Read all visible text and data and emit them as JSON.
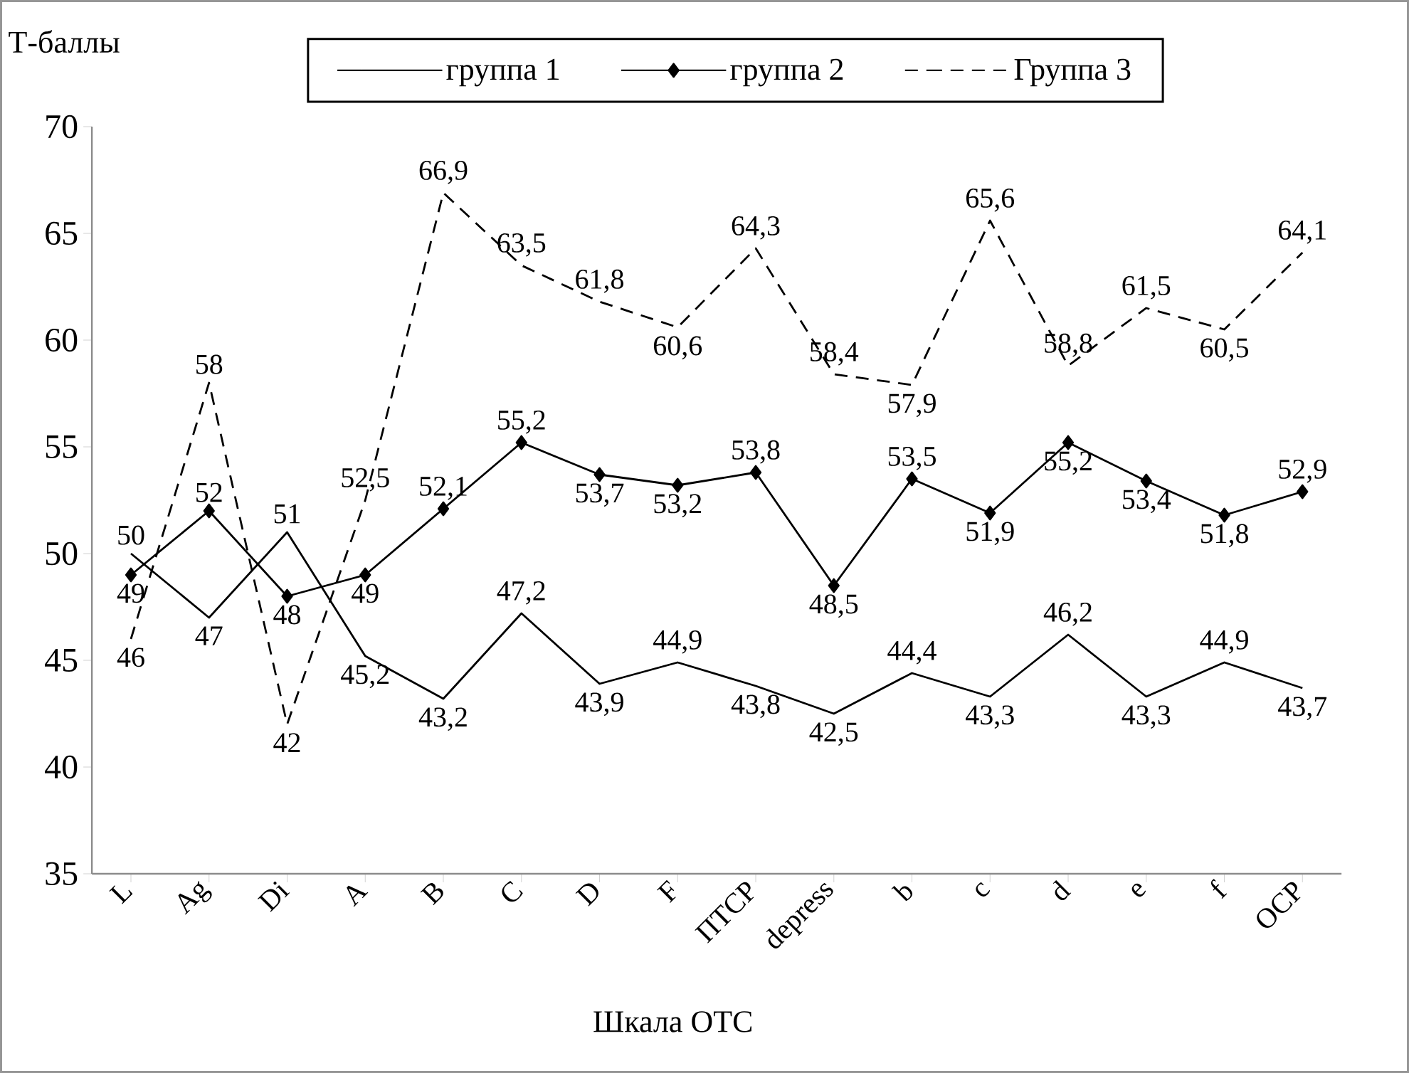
{
  "chart_data": {
    "type": "line",
    "xlabel": "Шкала  ОТС",
    "ylabel": "Т-баллы",
    "categories": [
      "L",
      "Ag",
      "Di",
      "A",
      "B",
      "C",
      "D",
      "F",
      "ПТСР",
      "depress",
      "b",
      "c",
      "d",
      "e",
      "f",
      "ОСР"
    ],
    "series": [
      {
        "name": "группа 1",
        "color": "#000000",
        "marker": "none",
        "line_style": "solid",
        "values": [
          50,
          47,
          51,
          45.2,
          43.2,
          47.2,
          43.9,
          44.9,
          43.8,
          42.5,
          44.4,
          43.3,
          46.2,
          43.3,
          44.9,
          43.7
        ],
        "value_labels": [
          "50",
          "47",
          "51",
          "45,2",
          "43,2",
          "47,2",
          "43,9",
          "44,9",
          "43,8",
          "42,5",
          "44,4",
          "43,3",
          "46,2",
          "43,3",
          "44,9",
          "43,7"
        ]
      },
      {
        "name": "группа 2",
        "color": "#000000",
        "marker": "diamond",
        "line_style": "solid",
        "values": [
          49,
          52,
          48,
          49,
          52.1,
          55.2,
          53.7,
          53.2,
          53.8,
          48.5,
          53.5,
          51.9,
          55.2,
          53.4,
          51.8,
          52.9
        ],
        "value_labels": [
          "49",
          "52",
          "48",
          "49",
          "52,1",
          "55,2",
          "53,7",
          "53,2",
          "53,8",
          "48,5",
          "53,5",
          "51,9",
          "55,2",
          "53,4",
          "51,8",
          "52,9"
        ]
      },
      {
        "name": "Группа 3",
        "color": "#000000",
        "marker": "none",
        "line_style": "dashed",
        "values": [
          46,
          58,
          42,
          52.5,
          66.9,
          63.5,
          61.8,
          60.6,
          64.3,
          58.4,
          57.9,
          65.6,
          58.8,
          61.5,
          60.5,
          64.1
        ],
        "value_labels": [
          "46",
          "58",
          "42",
          "52,5",
          "66,9",
          "63,5",
          "61,8",
          "60,6",
          "64,3",
          "58,4",
          "57,9",
          "65,6",
          "58,8",
          "61,5",
          "60,5",
          "64,1"
        ]
      }
    ],
    "ylim": [
      35,
      70
    ],
    "yticks": [
      35,
      40,
      45,
      50,
      55,
      60,
      65,
      70
    ],
    "legend": "top",
    "grid": false
  }
}
